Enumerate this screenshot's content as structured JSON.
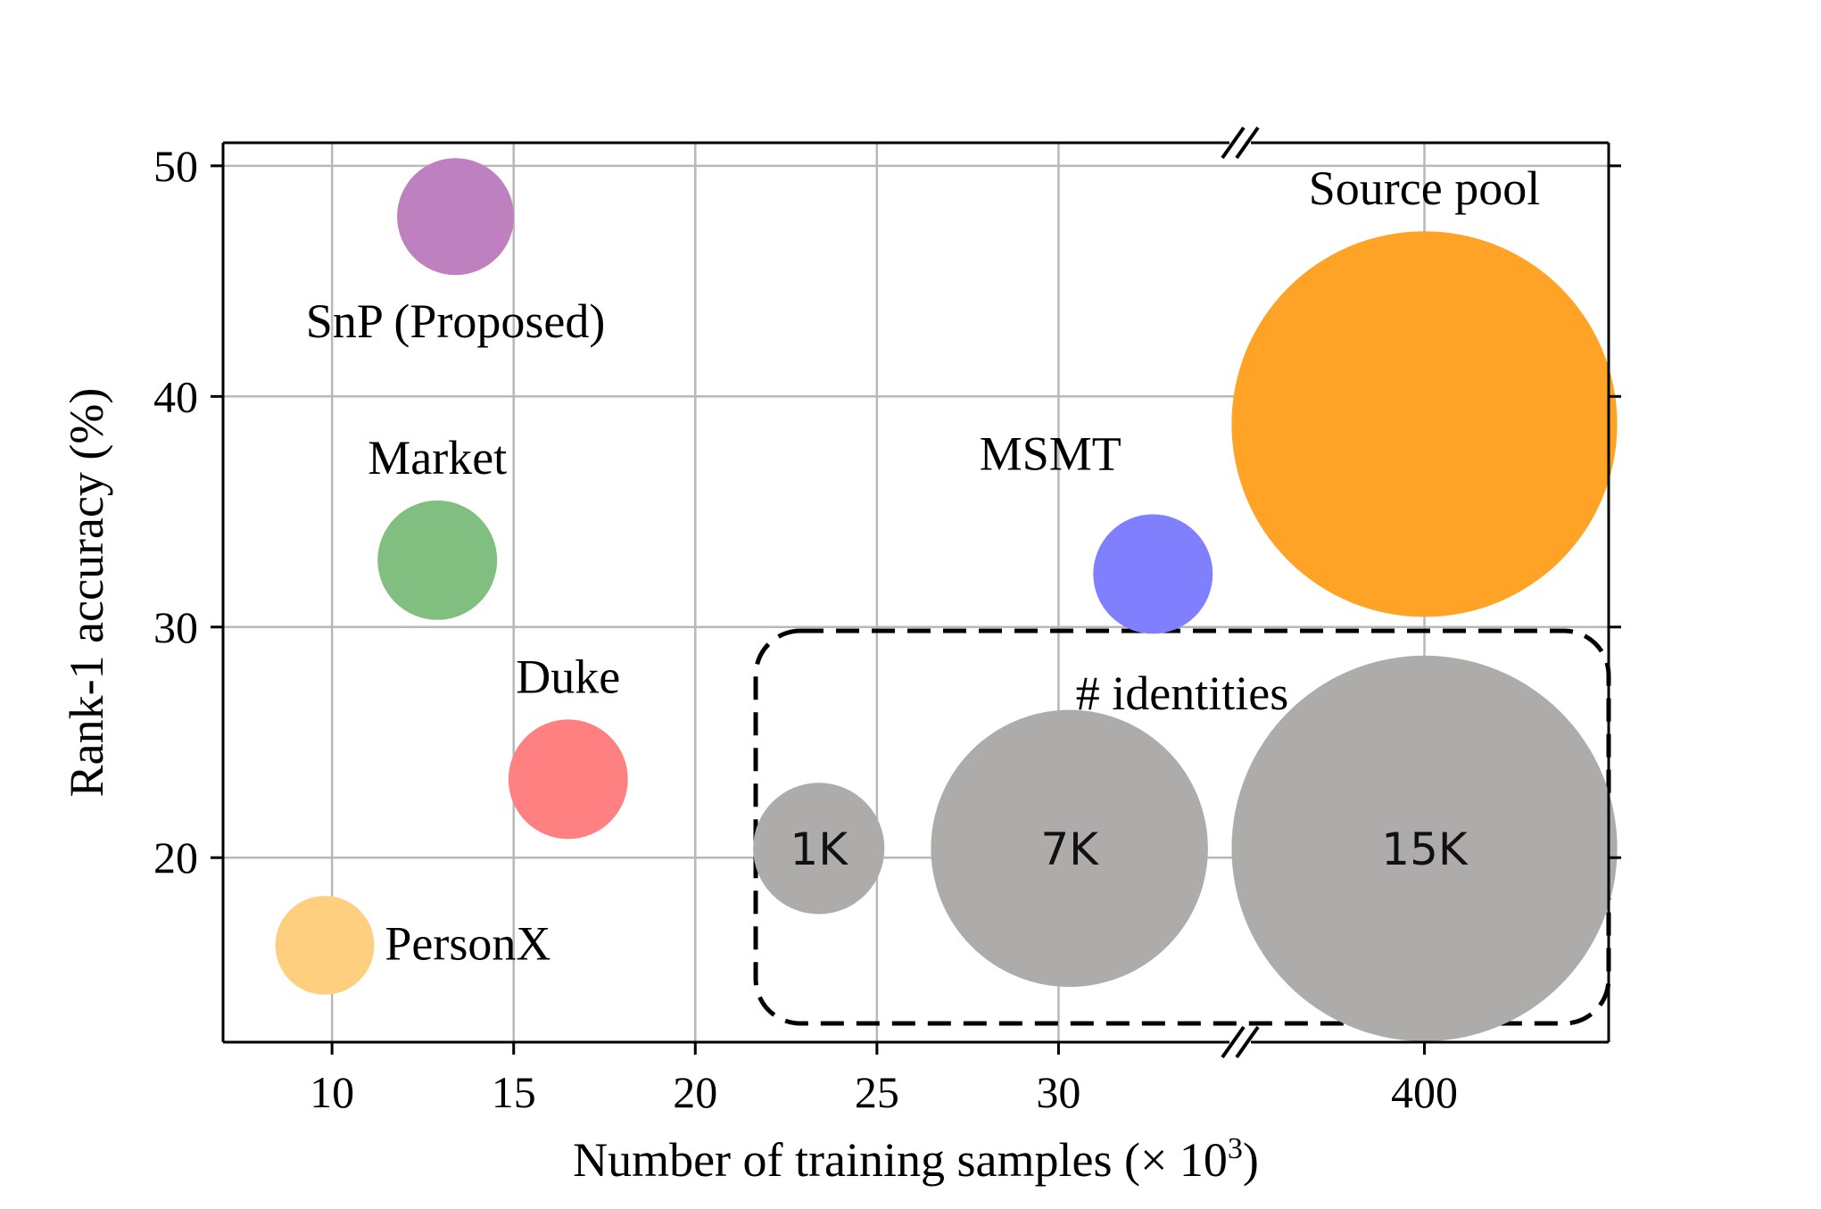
{
  "chart_data": {
    "type": "scatter",
    "title": "",
    "xlabel": "Number of training samples (× 10",
    "xlabel_superscript": "3",
    "xlabel_suffix": ")",
    "ylabel": "Rank-1 accuracy (%)",
    "ylim": [
      12,
      51
    ],
    "ytick_values": [
      20,
      30,
      40,
      50
    ],
    "ytick_labels": [
      "20",
      "30",
      "40",
      "50"
    ],
    "left_panel": {
      "xlim": [
        7,
        35
      ],
      "xtick_values": [
        10,
        15,
        20,
        25,
        30
      ],
      "xtick_labels": [
        "10",
        "15",
        "20",
        "25",
        "30"
      ]
    },
    "right_panel": {
      "xlim": [
        390,
        410
      ],
      "xtick_values": [
        400
      ],
      "xtick_labels": [
        "400"
      ]
    },
    "grid": true,
    "points": [
      {
        "name": "SnP (Proposed)",
        "x": 13.4,
        "y": 47.8,
        "identities_k": 0.7,
        "color": "#bf80bf",
        "panel": "left",
        "label_anchor": "below"
      },
      {
        "name": "Market",
        "x": 12.9,
        "y": 32.9,
        "identities_k": 0.75,
        "color": "#80bf80",
        "panel": "left",
        "label_anchor": "above"
      },
      {
        "name": "MSMT",
        "x": 32.6,
        "y": 32.3,
        "identities_k": 0.75,
        "color": "#8080ff",
        "panel": "left",
        "label_anchor": "above-left"
      },
      {
        "name": "Duke",
        "x": 16.5,
        "y": 23.4,
        "identities_k": 0.75,
        "color": "#ff8080",
        "panel": "left",
        "label_anchor": "above"
      },
      {
        "name": "PersonX",
        "x": 9.8,
        "y": 16.2,
        "identities_k": 0.4,
        "color": "#ffcf80",
        "panel": "left",
        "label_anchor": "right"
      },
      {
        "name": "Source pool",
        "x": 400,
        "y": 38.8,
        "identities_k": 15,
        "color": "#ffa326",
        "panel": "right",
        "label_anchor": "above"
      }
    ],
    "size_legend": {
      "title": "# identities",
      "entries": [
        {
          "label": "1K",
          "identities_k": 1,
          "x": 23.4,
          "panel": "left"
        },
        {
          "label": "7K",
          "identities_k": 7,
          "x": 30.3,
          "panel": "left"
        },
        {
          "label": "15K",
          "identities_k": 15,
          "x": 400,
          "panel": "right"
        }
      ],
      "y": 20.4,
      "color": "#aeacab"
    }
  }
}
